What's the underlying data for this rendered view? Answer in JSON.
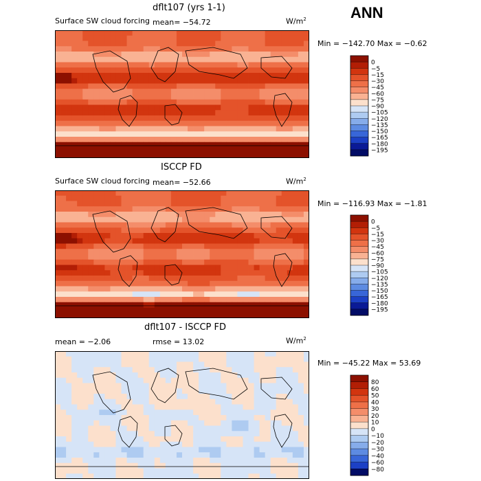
{
  "season": "ANN",
  "panels": [
    {
      "title": "dflt107 (yrs 1-1)",
      "variable": "Surface SW cloud forcing",
      "mean": "mean= −54.72",
      "rmse": "",
      "units": "W/m",
      "units_exp": "2",
      "minmax": "Min = −142.70  Max =   −0.62"
    },
    {
      "title": "ISCCP FD",
      "variable": "Surface SW cloud forcing",
      "mean": "mean= −52.66",
      "rmse": "",
      "units": "W/m",
      "units_exp": "2",
      "minmax": "Min = −116.93  Max =  −1.81"
    },
    {
      "title": "dflt107 - ISCCP FD",
      "variable": "",
      "mean": "mean =   −2.06",
      "rmse": "rmse =   13.02",
      "units": "W/m",
      "units_exp": "2",
      "minmax": "Min = −45.22  Max =   53.69"
    }
  ],
  "chart_data": [
    {
      "type": "heatmap",
      "title": "dflt107 (yrs 1-1)",
      "variable": "Surface SW cloud forcing",
      "units": "W/m2",
      "mean": -54.72,
      "min": -142.7,
      "max": -0.62,
      "colorbar": {
        "levels": [
          0,
          -5,
          -15,
          -30,
          -45,
          -60,
          -75,
          -90,
          -105,
          -120,
          -135,
          -150,
          -165,
          -180,
          -195
        ],
        "labels": [
          "0",
          "−5",
          "−15",
          "−30",
          "−45",
          "−60",
          "−75",
          "−90",
          "−105",
          "−120",
          "−135",
          "−150",
          "−165",
          "−180",
          "−195"
        ],
        "colors": [
          "#8c1000",
          "#b21e05",
          "#d2350f",
          "#e4532a",
          "#ee7048",
          "#f48d6a",
          "#f9b293",
          "#fce0cc",
          "#d6e4f7",
          "#aecbf1",
          "#86acea",
          "#5d8be2",
          "#3866d8",
          "#1c40c5",
          "#0a1a96",
          "#020c66"
        ]
      }
    },
    {
      "type": "heatmap",
      "title": "ISCCP FD",
      "variable": "Surface SW cloud forcing",
      "units": "W/m2",
      "mean": -52.66,
      "min": -116.93,
      "max": -1.81,
      "colorbar": {
        "levels": [
          0,
          -5,
          -15,
          -30,
          -45,
          -60,
          -75,
          -90,
          -105,
          -120,
          -135,
          -150,
          -165,
          -180,
          -195
        ],
        "labels": [
          "0",
          "−5",
          "−15",
          "−30",
          "−45",
          "−60",
          "−75",
          "−90",
          "−105",
          "−120",
          "−135",
          "−150",
          "−165",
          "−180",
          "−195"
        ],
        "colors": [
          "#8c1000",
          "#b21e05",
          "#d2350f",
          "#e4532a",
          "#ee7048",
          "#f48d6a",
          "#f9b293",
          "#fce0cc",
          "#d6e4f7",
          "#aecbf1",
          "#86acea",
          "#5d8be2",
          "#3866d8",
          "#1c40c5",
          "#0a1a96",
          "#020c66"
        ]
      }
    },
    {
      "type": "heatmap",
      "title": "dflt107 - ISCCP FD",
      "units": "W/m2",
      "mean": -2.06,
      "rmse": 13.02,
      "min": -45.22,
      "max": 53.69,
      "colorbar": {
        "levels": [
          80,
          60,
          50,
          40,
          30,
          20,
          10,
          0,
          -10,
          -20,
          -30,
          -40,
          -60,
          -80
        ],
        "labels": [
          "80",
          "60",
          "50",
          "40",
          "30",
          "20",
          "10",
          "0",
          "−10",
          "−20",
          "−30",
          "−40",
          "−60",
          "−80"
        ],
        "colors": [
          "#8c1000",
          "#b21e05",
          "#d2350f",
          "#e4532a",
          "#ee7048",
          "#f48d6a",
          "#f9b293",
          "#fce0cc",
          "#d6e4f7",
          "#aecbf1",
          "#86acea",
          "#5d8be2",
          "#3866d8",
          "#1c40c5",
          "#020c66"
        ]
      }
    }
  ]
}
